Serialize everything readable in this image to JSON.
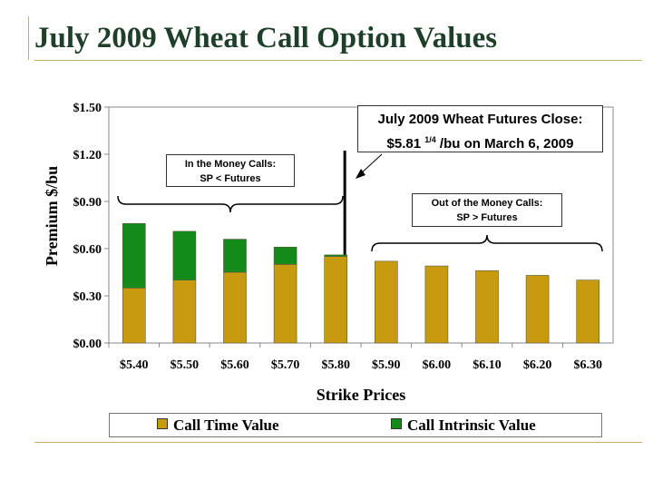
{
  "slide": {
    "title": "July 2009 Wheat Call Option Values"
  },
  "chart_data": {
    "type": "bar",
    "stacked": true,
    "title": "",
    "xlabel": "Strike Prices",
    "ylabel": "Premium $/bu",
    "categories": [
      "$5.40",
      "$5.50",
      "$5.60",
      "$5.70",
      "$5.80",
      "$5.90",
      "$6.00",
      "$6.10",
      "$6.20",
      "$6.30"
    ],
    "series": [
      {
        "name": "Call Time Value",
        "color": "#c89a0e",
        "values": [
          0.35,
          0.4,
          0.45,
          0.5,
          0.55,
          0.52,
          0.49,
          0.46,
          0.43,
          0.4
        ]
      },
      {
        "name": "Call Intrinsic Value",
        "color": "#138a1a",
        "values": [
          0.41,
          0.31,
          0.21,
          0.11,
          0.01,
          0,
          0,
          0,
          0,
          0
        ]
      }
    ],
    "ylim": [
      0,
      1.5
    ],
    "yticks": [
      "$0.00",
      "$0.30",
      "$0.60",
      "$0.90",
      "$1.20",
      "$1.50"
    ],
    "ytick_values": [
      0,
      0.3,
      0.6,
      0.9,
      1.2,
      1.5
    ],
    "grid": false,
    "legend_position": "bottom",
    "annotations": {
      "futures": {
        "line1": "July 2009 Wheat Futures Close:",
        "price": "$5.81",
        "fraction": "1/4",
        "rest": "/bu on March 6, 2009"
      },
      "itm": {
        "line1": "In the Money Calls:",
        "line2": "SP < Futures"
      },
      "otm": {
        "line1": "Out of the Money Calls:",
        "line2": "SP > Futures"
      }
    }
  }
}
